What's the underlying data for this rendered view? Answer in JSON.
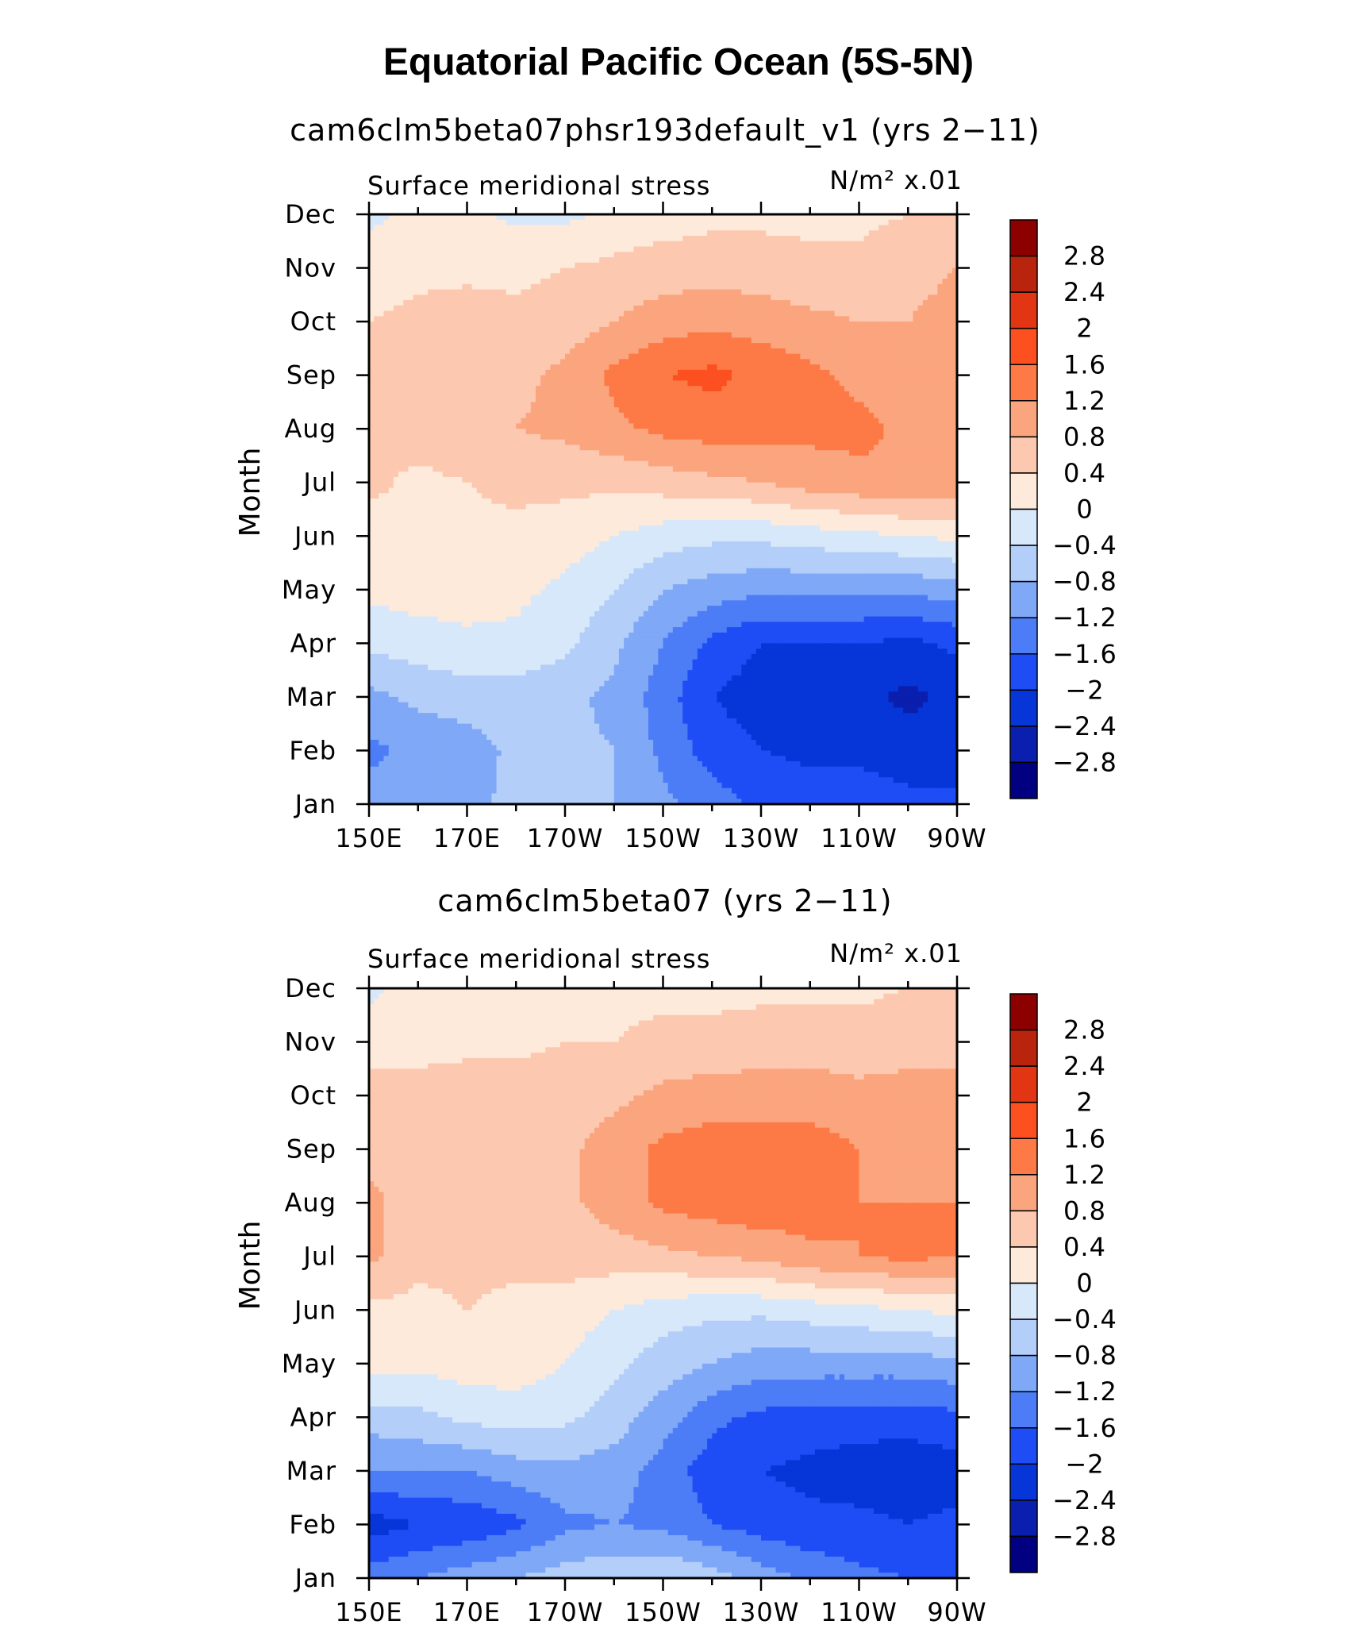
{
  "figure": {
    "title": "Equatorial Pacific Ocean (5S-5N)"
  },
  "colorbar": {
    "labels": [
      "2.8",
      "2.4",
      "2",
      "1.6",
      "1.2",
      "0.8",
      "0.4",
      "0",
      "−0.4",
      "−0.8",
      "−1.2",
      "−1.6",
      "−2",
      "−2.4",
      "−2.8"
    ],
    "colors": [
      "#000080",
      "#0A1FAE",
      "#0635D8",
      "#1F4DF5",
      "#4D7DF6",
      "#7FA8F7",
      "#B3CEF9",
      "#D8E8FB",
      "#FDEADA",
      "#FCC9B0",
      "#FBA57E",
      "#FD7A46",
      "#FC5020",
      "#E13513",
      "#B9240C",
      "#8C0000"
    ]
  },
  "chart_data": [
    {
      "type": "heatmap",
      "title": "cam6clm5beta07phsr193default_v1 (yrs 2−11)",
      "subtitle_left": "Surface meridional stress",
      "units": "N/m² x.01",
      "ylabel": "Month",
      "xlabel": "",
      "x_ticks": [
        "150E",
        "170E",
        "170W",
        "150W",
        "130W",
        "110W",
        "90W"
      ],
      "x_range": [
        150,
        270
      ],
      "y_ticks": [
        "Jan",
        "Feb",
        "Mar",
        "Apr",
        "May",
        "Jun",
        "Jul",
        "Aug",
        "Sep",
        "Oct",
        "Nov",
        "Dec"
      ],
      "y_range": [
        1,
        12
      ],
      "contour_levels": [
        -2.8,
        -2.4,
        -2,
        -1.6,
        -1.2,
        -0.8,
        -0.4,
        0,
        0.4,
        0.8,
        1.2,
        1.6,
        2,
        2.4,
        2.8
      ],
      "lon": [
        150,
        160,
        170,
        180,
        190,
        200,
        210,
        220,
        230,
        240,
        250,
        260,
        270
      ],
      "months": [
        1,
        2,
        3,
        4,
        5,
        6,
        7,
        8,
        9,
        10,
        11,
        12
      ],
      "values": [
        [
          -1.0,
          -1.0,
          -0.9,
          -0.7,
          -0.7,
          -0.8,
          -1.1,
          -1.4,
          -1.7,
          -1.8,
          -1.8,
          -1.9,
          -1.9
        ],
        [
          -1.3,
          -1.1,
          -1.0,
          -0.7,
          -0.7,
          -0.8,
          -1.3,
          -1.8,
          -2.0,
          -2.1,
          -2.1,
          -2.2,
          -2.2
        ],
        [
          -0.9,
          -0.7,
          -0.6,
          -0.6,
          -0.7,
          -0.9,
          -1.4,
          -2.0,
          -2.2,
          -2.2,
          -2.3,
          -2.5,
          -2.3
        ],
        [
          -0.3,
          -0.2,
          -0.1,
          -0.1,
          -0.3,
          -0.7,
          -1.2,
          -1.7,
          -2.0,
          -2.0,
          -2.0,
          -2.1,
          -1.9
        ],
        [
          0.1,
          0.2,
          0.2,
          0.1,
          -0.1,
          -0.4,
          -0.8,
          -1.0,
          -1.1,
          -1.1,
          -1.1,
          -1.1,
          -1.0
        ],
        [
          0.2,
          0.3,
          0.3,
          0.3,
          0.2,
          0.0,
          -0.2,
          -0.3,
          -0.3,
          -0.2,
          -0.1,
          0.0,
          0.1
        ],
        [
          0.5,
          0.3,
          0.4,
          0.5,
          0.5,
          0.5,
          0.6,
          0.7,
          0.8,
          1.0,
          1.1,
          1.2,
          1.1
        ],
        [
          0.5,
          0.6,
          0.7,
          0.8,
          0.9,
          1.1,
          1.3,
          1.4,
          1.4,
          1.3,
          1.3,
          1.1,
          1.0
        ],
        [
          0.5,
          0.6,
          0.7,
          0.7,
          0.9,
          1.3,
          1.6,
          1.7,
          1.5,
          1.3,
          1.1,
          1.0,
          0.9
        ],
        [
          0.4,
          0.5,
          0.6,
          0.5,
          0.6,
          0.8,
          1.0,
          1.1,
          1.0,
          0.9,
          0.8,
          0.8,
          0.9
        ],
        [
          0.2,
          0.3,
          0.3,
          0.3,
          0.4,
          0.5,
          0.6,
          0.6,
          0.6,
          0.5,
          0.5,
          0.7,
          0.8
        ],
        [
          -0.1,
          0.1,
          0.1,
          -0.1,
          -0.1,
          0.1,
          0.2,
          0.3,
          0.3,
          0.3,
          0.3,
          0.4,
          0.4
        ]
      ]
    },
    {
      "type": "heatmap",
      "title": "cam6clm5beta07 (yrs 2−11)",
      "subtitle_left": "Surface meridional stress",
      "units": "N/m² x.01",
      "ylabel": "Month",
      "xlabel": "",
      "x_ticks": [
        "150E",
        "170E",
        "170W",
        "150W",
        "130W",
        "110W",
        "90W"
      ],
      "x_range": [
        150,
        270
      ],
      "y_ticks": [
        "Jan",
        "Feb",
        "Mar",
        "Apr",
        "May",
        "Jun",
        "Jul",
        "Aug",
        "Sep",
        "Oct",
        "Nov",
        "Dec"
      ],
      "y_range": [
        1,
        12
      ],
      "contour_levels": [
        -2.8,
        -2.4,
        -2,
        -1.6,
        -1.2,
        -0.8,
        -0.4,
        0,
        0.4,
        0.8,
        1.2,
        1.6,
        2,
        2.4,
        2.8
      ],
      "lon": [
        150,
        160,
        170,
        180,
        190,
        200,
        210,
        220,
        230,
        240,
        250,
        260,
        270
      ],
      "months": [
        1,
        2,
        3,
        4,
        5,
        6,
        7,
        8,
        9,
        10,
        11,
        12
      ],
      "values": [
        [
          -1.4,
          -1.2,
          -1.0,
          -0.8,
          -0.6,
          -0.5,
          -0.4,
          -0.6,
          -1.0,
          -1.3,
          -1.5,
          -1.6,
          -1.6
        ],
        [
          -2.2,
          -2.0,
          -1.9,
          -1.7,
          -1.3,
          -1.2,
          -1.3,
          -1.6,
          -1.8,
          -1.9,
          -1.9,
          -2.0,
          -1.9
        ],
        [
          -1.2,
          -1.2,
          -1.2,
          -1.0,
          -0.9,
          -1.0,
          -1.4,
          -1.8,
          -2.0,
          -2.1,
          -2.2,
          -2.3,
          -2.2
        ],
        [
          -0.6,
          -0.5,
          -0.3,
          -0.2,
          -0.3,
          -0.6,
          -1.0,
          -1.5,
          -1.7,
          -1.8,
          -1.8,
          -1.8,
          -1.7
        ],
        [
          0.2,
          0.1,
          0.2,
          0.2,
          0.0,
          -0.3,
          -0.6,
          -0.8,
          -1.0,
          -1.0,
          -1.0,
          -1.0,
          -0.9
        ],
        [
          0.3,
          0.3,
          0.4,
          0.3,
          0.2,
          0.0,
          -0.2,
          -0.3,
          -0.3,
          -0.2,
          -0.1,
          0.0,
          0.1
        ],
        [
          0.9,
          0.5,
          0.5,
          0.5,
          0.6,
          0.6,
          0.7,
          0.8,
          0.9,
          1.1,
          1.2,
          1.3,
          1.2
        ],
        [
          0.9,
          0.6,
          0.6,
          0.6,
          0.7,
          1.0,
          1.3,
          1.4,
          1.5,
          1.4,
          1.2,
          1.2,
          1.2
        ],
        [
          0.7,
          0.6,
          0.6,
          0.6,
          0.7,
          1.0,
          1.3,
          1.4,
          1.4,
          1.4,
          1.2,
          1.1,
          1.0
        ],
        [
          0.6,
          0.5,
          0.6,
          0.6,
          0.6,
          0.7,
          0.9,
          1.0,
          1.0,
          1.0,
          0.9,
          0.9,
          0.9
        ],
        [
          0.2,
          0.3,
          0.3,
          0.3,
          0.4,
          0.4,
          0.5,
          0.5,
          0.6,
          0.6,
          0.6,
          0.7,
          0.7
        ],
        [
          -0.1,
          0.2,
          0.2,
          0.2,
          0.3,
          0.3,
          0.3,
          0.3,
          0.3,
          0.3,
          0.3,
          0.4,
          0.4
        ]
      ]
    }
  ]
}
